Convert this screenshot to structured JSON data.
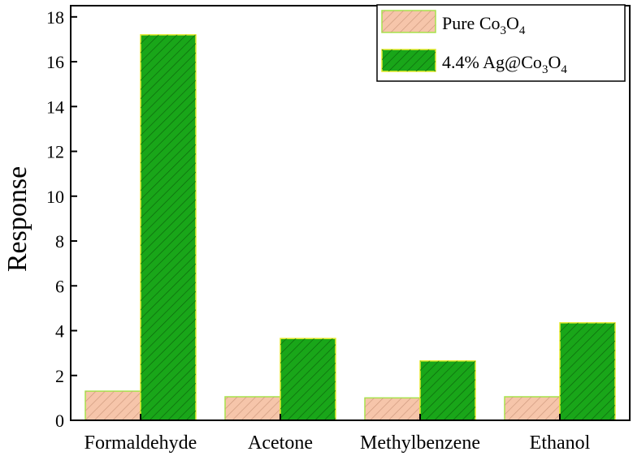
{
  "chart_data": {
    "type": "bar",
    "categories": [
      "Formaldehyde",
      "Acetone",
      "Methylbenzene",
      "Ethanol"
    ],
    "series": [
      {
        "name": "Pure Co3O4",
        "values": [
          1.3,
          1.05,
          1.0,
          1.05
        ],
        "fill": "#f6c5aa",
        "edge": "#a6e34a",
        "hatch": "#cf9a7e"
      },
      {
        "name": "4.4% Ag@Co3O4",
        "values": [
          17.2,
          3.65,
          2.65,
          4.35
        ],
        "fill": "#19a619",
        "edge": "#e6ea2c",
        "hatch": "#0c680c"
      }
    ],
    "legend_parts": [
      {
        "a": "Pure Co",
        "s1": "3",
        "b": "O",
        "s2": "4"
      },
      {
        "a": "4.4% Ag@Co",
        "s1": "3",
        "b": "O",
        "s2": "4"
      }
    ],
    "title": "",
    "xlabel": "",
    "ylabel": "Response",
    "ylim": [
      0,
      18.5
    ],
    "yticks": [
      0,
      2,
      4,
      6,
      8,
      10,
      12,
      14,
      16,
      18
    ],
    "ytick_labels": [
      "0",
      "2",
      "4",
      "6",
      "8",
      "10",
      "12",
      "14",
      "16",
      "18"
    ],
    "grid": false,
    "legend_position": "top-right"
  }
}
